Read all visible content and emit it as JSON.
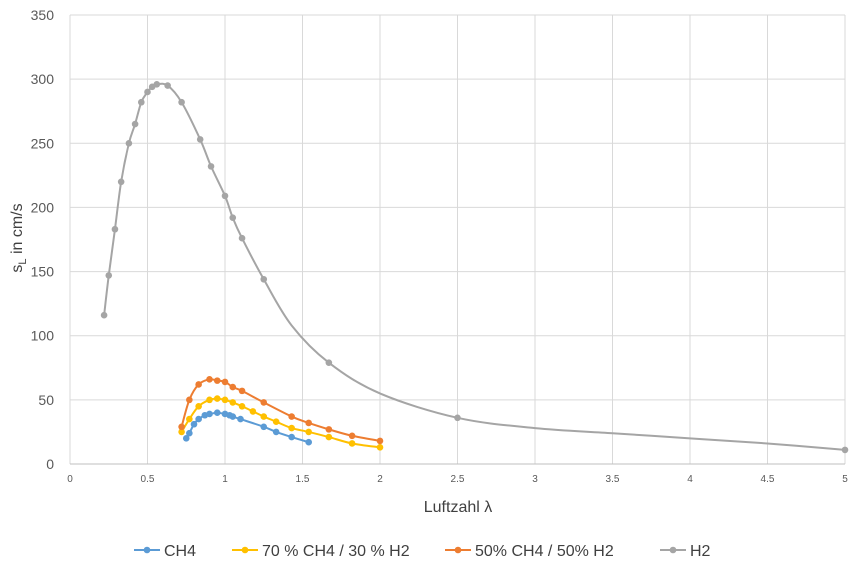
{
  "chart_data": {
    "type": "scatter",
    "title": "",
    "xlabel": "Luftzahl λ",
    "ylabel": {
      "base": "s",
      "sub": "L",
      "rest": " in cm/s"
    },
    "xlim": [
      0,
      5
    ],
    "ylim": [
      0,
      350
    ],
    "x_ticks": [
      0,
      0.5,
      1,
      1.5,
      2,
      2.5,
      3,
      3.5,
      4,
      4.5,
      5
    ],
    "y_ticks": [
      0,
      50,
      100,
      150,
      200,
      250,
      300,
      350
    ],
    "grid": true,
    "legend_position": "bottom",
    "series": [
      {
        "name": "CH4",
        "color": "#5B9BD5",
        "points": [
          [
            0.75,
            20
          ],
          [
            0.77,
            24
          ],
          [
            0.8,
            31
          ],
          [
            0.83,
            35
          ],
          [
            0.87,
            38
          ],
          [
            0.9,
            39
          ],
          [
            0.95,
            40
          ],
          [
            1.0,
            39
          ],
          [
            1.03,
            38
          ],
          [
            1.05,
            37
          ],
          [
            1.1,
            35
          ],
          [
            1.25,
            29
          ],
          [
            1.33,
            25
          ],
          [
            1.43,
            21
          ],
          [
            1.54,
            17
          ]
        ],
        "marker_points": [
          [
            0.75,
            20
          ],
          [
            0.77,
            24
          ],
          [
            0.8,
            31
          ],
          [
            0.83,
            35
          ],
          [
            0.87,
            38
          ],
          [
            0.9,
            39
          ],
          [
            0.95,
            40
          ],
          [
            1.0,
            39
          ],
          [
            1.03,
            38
          ],
          [
            1.05,
            37
          ],
          [
            1.1,
            35
          ],
          [
            1.25,
            29
          ],
          [
            1.33,
            25
          ],
          [
            1.43,
            21
          ],
          [
            1.54,
            17
          ]
        ]
      },
      {
        "name": "70 % CH4 / 30 % H2",
        "color": "#FFC000",
        "points": [
          [
            0.72,
            25
          ],
          [
            0.77,
            35
          ],
          [
            0.83,
            45
          ],
          [
            0.9,
            50
          ],
          [
            0.95,
            51
          ],
          [
            1.0,
            50
          ],
          [
            1.05,
            48
          ],
          [
            1.11,
            45
          ],
          [
            1.18,
            41
          ],
          [
            1.25,
            37
          ],
          [
            1.33,
            33
          ],
          [
            1.43,
            28
          ],
          [
            1.54,
            25
          ],
          [
            1.67,
            21
          ],
          [
            1.82,
            16
          ],
          [
            2.0,
            13
          ]
        ],
        "marker_points": [
          [
            0.72,
            25
          ],
          [
            0.77,
            35
          ],
          [
            0.83,
            45
          ],
          [
            0.9,
            50
          ],
          [
            0.95,
            51
          ],
          [
            1.0,
            50
          ],
          [
            1.05,
            48
          ],
          [
            1.11,
            45
          ],
          [
            1.18,
            41
          ],
          [
            1.25,
            37
          ],
          [
            1.33,
            33
          ],
          [
            1.43,
            28
          ],
          [
            1.54,
            25
          ],
          [
            1.67,
            21
          ],
          [
            1.82,
            16
          ],
          [
            2.0,
            13
          ]
        ]
      },
      {
        "name": "50% CH4 / 50% H2",
        "color": "#ED7D31",
        "points": [
          [
            0.72,
            29
          ],
          [
            0.77,
            50
          ],
          [
            0.83,
            62
          ],
          [
            0.9,
            66
          ],
          [
            0.95,
            65
          ],
          [
            1.0,
            64
          ],
          [
            1.05,
            60
          ],
          [
            1.11,
            57
          ],
          [
            1.25,
            48
          ],
          [
            1.43,
            37
          ],
          [
            1.54,
            32
          ],
          [
            1.67,
            27
          ],
          [
            1.82,
            22
          ],
          [
            2.0,
            18
          ]
        ],
        "marker_points": [
          [
            0.72,
            29
          ],
          [
            0.77,
            50
          ],
          [
            0.83,
            62
          ],
          [
            0.9,
            66
          ],
          [
            0.95,
            65
          ],
          [
            1.0,
            64
          ],
          [
            1.05,
            60
          ],
          [
            1.11,
            57
          ],
          [
            1.25,
            48
          ],
          [
            1.43,
            37
          ],
          [
            1.54,
            32
          ],
          [
            1.67,
            27
          ],
          [
            1.82,
            22
          ],
          [
            2.0,
            18
          ]
        ]
      },
      {
        "name": "H2",
        "color": "#A5A5A5",
        "points": [
          [
            0.22,
            116
          ],
          [
            0.25,
            147
          ],
          [
            0.29,
            183
          ],
          [
            0.33,
            220
          ],
          [
            0.38,
            250
          ],
          [
            0.42,
            265
          ],
          [
            0.46,
            282
          ],
          [
            0.5,
            290
          ],
          [
            0.53,
            294
          ],
          [
            0.56,
            296
          ],
          [
            0.63,
            295
          ],
          [
            0.72,
            282
          ],
          [
            0.84,
            253
          ],
          [
            0.91,
            232
          ],
          [
            1.0,
            209
          ],
          [
            1.05,
            192
          ],
          [
            1.11,
            176
          ],
          [
            1.25,
            144
          ],
          [
            1.43,
            108
          ],
          [
            1.67,
            79
          ],
          [
            2.0,
            55
          ],
          [
            2.5,
            36
          ],
          [
            3.0,
            28
          ],
          [
            3.5,
            24
          ],
          [
            4.0,
            20
          ],
          [
            4.5,
            16
          ],
          [
            5.0,
            11
          ]
        ],
        "marker_points": [
          [
            0.22,
            116
          ],
          [
            0.25,
            147
          ],
          [
            0.29,
            183
          ],
          [
            0.33,
            220
          ],
          [
            0.38,
            250
          ],
          [
            0.42,
            265
          ],
          [
            0.46,
            282
          ],
          [
            0.5,
            290
          ],
          [
            0.53,
            294
          ],
          [
            0.56,
            296
          ],
          [
            0.63,
            295
          ],
          [
            0.72,
            282
          ],
          [
            0.84,
            253
          ],
          [
            0.91,
            232
          ],
          [
            1.0,
            209
          ],
          [
            1.05,
            192
          ],
          [
            1.11,
            176
          ],
          [
            1.25,
            144
          ],
          [
            1.67,
            79
          ],
          [
            2.5,
            36
          ],
          [
            5.0,
            11
          ]
        ]
      }
    ]
  }
}
